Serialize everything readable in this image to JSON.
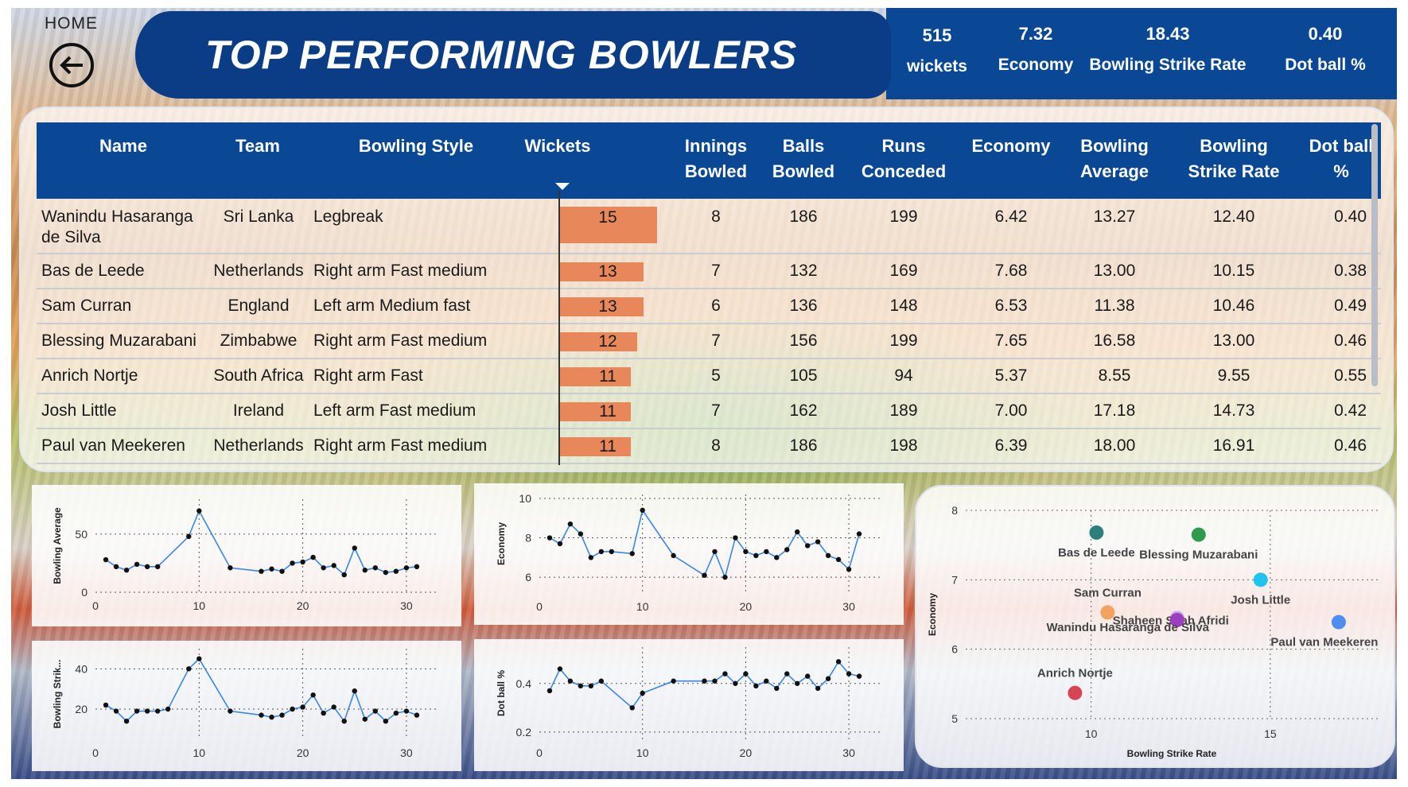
{
  "header": {
    "home_label": "HOME",
    "title": "TOP PERFORMING BOWLERS"
  },
  "kpis": [
    {
      "value": "515",
      "label": "wickets"
    },
    {
      "value": "7.32",
      "label": "Economy"
    },
    {
      "value": "18.43",
      "label": "Bowling Strike Rate"
    },
    {
      "value": "0.40",
      "label": "Dot ball %"
    }
  ],
  "table": {
    "columns": [
      "Name",
      "Team",
      "Bowling Style",
      "Wickets",
      "Innings Bowled",
      "Balls Bowled",
      "Runs Conceded",
      "Economy",
      "Bowling Average",
      "Bowling Strike Rate",
      "Dot ball %"
    ],
    "wickets_max": 15,
    "rows": [
      {
        "name": "Wanindu Hasaranga de Silva",
        "team": "Sri Lanka",
        "style": "Legbreak",
        "wickets": 15,
        "innings": "8",
        "balls": "186",
        "runs": "199",
        "economy": "6.42",
        "average": "13.27",
        "strike_rate": "12.40",
        "dot": "0.40"
      },
      {
        "name": "Bas de Leede",
        "team": "Netherlands",
        "style": "Right arm Fast medium",
        "wickets": 13,
        "innings": "7",
        "balls": "132",
        "runs": "169",
        "economy": "7.68",
        "average": "13.00",
        "strike_rate": "10.15",
        "dot": "0.38"
      },
      {
        "name": "Sam Curran",
        "team": "England",
        "style": "Left arm Medium fast",
        "wickets": 13,
        "innings": "6",
        "balls": "136",
        "runs": "148",
        "economy": "6.53",
        "average": "11.38",
        "strike_rate": "10.46",
        "dot": "0.49"
      },
      {
        "name": "Blessing Muzarabani",
        "team": "Zimbabwe",
        "style": "Right arm Fast medium",
        "wickets": 12,
        "innings": "7",
        "balls": "156",
        "runs": "199",
        "economy": "7.65",
        "average": "16.58",
        "strike_rate": "13.00",
        "dot": "0.46"
      },
      {
        "name": "Anrich Nortje",
        "team": "South Africa",
        "style": "Right arm Fast",
        "wickets": 11,
        "innings": "5",
        "balls": "105",
        "runs": "94",
        "economy": "5.37",
        "average": "8.55",
        "strike_rate": "9.55",
        "dot": "0.55"
      },
      {
        "name": "Josh Little",
        "team": "Ireland",
        "style": "Left arm Fast medium",
        "wickets": 11,
        "innings": "7",
        "balls": "162",
        "runs": "189",
        "economy": "7.00",
        "average": "17.18",
        "strike_rate": "14.73",
        "dot": "0.42"
      },
      {
        "name": "Paul van Meekeren",
        "team": "Netherlands",
        "style": "Right arm Fast medium",
        "wickets": 11,
        "innings": "8",
        "balls": "186",
        "runs": "198",
        "economy": "6.39",
        "average": "18.00",
        "strike_rate": "16.91",
        "dot": "0.46"
      }
    ]
  },
  "chart_data": [
    {
      "type": "line",
      "id": "avg",
      "ylabel": "Bowling Average",
      "xlim": [
        0,
        33
      ],
      "ylim": [
        0,
        80
      ],
      "xticks": [
        "0",
        "10",
        "20",
        "30"
      ],
      "yticks": [
        "0",
        "50"
      ],
      "x": [
        1,
        2,
        3,
        4,
        5,
        6,
        9,
        10,
        13,
        16,
        17,
        18,
        19,
        20,
        21,
        22,
        23,
        24,
        25,
        26,
        27,
        28,
        29,
        30,
        31
      ],
      "y": [
        28,
        22,
        19,
        24,
        22,
        22,
        48,
        70,
        21,
        18,
        20,
        18,
        25,
        26,
        30,
        21,
        23,
        15,
        38,
        19,
        21,
        17,
        18,
        21,
        22
      ]
    },
    {
      "type": "line",
      "id": "eco",
      "ylabel": "Economy",
      "xlim": [
        0,
        33
      ],
      "ylim": [
        5.2,
        10.2
      ],
      "xticks": [
        "0",
        "10",
        "20",
        "30"
      ],
      "yticks": [
        "6",
        "8",
        "10"
      ],
      "x": [
        1,
        2,
        3,
        4,
        5,
        6,
        7,
        9,
        10,
        13,
        16,
        17,
        18,
        19,
        20,
        21,
        22,
        23,
        24,
        25,
        26,
        27,
        28,
        29,
        30,
        31
      ],
      "y": [
        8.0,
        7.7,
        8.7,
        8.2,
        7.0,
        7.3,
        7.3,
        7.2,
        9.4,
        7.1,
        6.1,
        7.3,
        6.0,
        8.0,
        7.3,
        7.1,
        7.3,
        7.0,
        7.4,
        8.3,
        7.6,
        7.8,
        7.1,
        6.9,
        6.4,
        8.2
      ]
    },
    {
      "type": "line",
      "id": "sr",
      "ylabel": "Bowling Strik...",
      "xlim": [
        0,
        33
      ],
      "ylim": [
        5,
        50
      ],
      "xticks": [
        "0",
        "10",
        "20",
        "30"
      ],
      "yticks": [
        "20",
        "40"
      ],
      "x": [
        1,
        2,
        3,
        4,
        5,
        6,
        7,
        9,
        10,
        13,
        16,
        17,
        18,
        19,
        20,
        21,
        22,
        23,
        24,
        25,
        26,
        27,
        28,
        29,
        30,
        31
      ],
      "y": [
        22,
        19,
        14,
        19,
        19,
        19,
        20,
        40,
        45,
        19,
        17,
        16,
        17,
        20,
        21,
        27,
        18,
        21,
        14,
        29,
        15,
        19,
        14,
        18,
        19,
        17
      ]
    },
    {
      "type": "line",
      "id": "dot",
      "ylabel": "Dot ball %",
      "xlim": [
        0,
        33
      ],
      "ylim": [
        0.17,
        0.55
      ],
      "xticks": [
        "0",
        "10",
        "20",
        "30"
      ],
      "yticks": [
        "0.2",
        "0.4"
      ],
      "x": [
        1,
        2,
        3,
        4,
        5,
        6,
        9,
        10,
        13,
        16,
        17,
        18,
        19,
        20,
        21,
        22,
        23,
        24,
        25,
        26,
        27,
        28,
        29,
        30,
        31
      ],
      "y": [
        0.37,
        0.46,
        0.41,
        0.39,
        0.39,
        0.41,
        0.3,
        0.36,
        0.41,
        0.41,
        0.41,
        0.44,
        0.4,
        0.44,
        0.39,
        0.41,
        0.38,
        0.44,
        0.4,
        0.43,
        0.38,
        0.42,
        0.49,
        0.44,
        0.43
      ]
    },
    {
      "type": "scatter",
      "id": "scatter",
      "xlabel": "Bowling Strike Rate",
      "ylabel": "Economy",
      "xlim": [
        6.5,
        18
      ],
      "ylim": [
        5,
        8
      ],
      "xticks": [
        "10",
        "15"
      ],
      "yticks": [
        "5",
        "6",
        "7",
        "8"
      ],
      "points": [
        {
          "name": "Bas de Leede",
          "x": 10.15,
          "y": 7.68,
          "color": "#2d7f7c"
        },
        {
          "name": "Blessing Muzarabani",
          "x": 13.0,
          "y": 7.65,
          "color": "#2e9a4e"
        },
        {
          "name": "Josh Little",
          "x": 14.73,
          "y": 7.0,
          "color": "#22c3ef"
        },
        {
          "name": "Sam Curran",
          "x": 10.46,
          "y": 6.53,
          "color": "#f4a261"
        },
        {
          "name": "Shaheen Shah Afridi",
          "x": 12.4,
          "y": 6.45,
          "color": "#c6a7f5"
        },
        {
          "name": "Wanindu Hasaranga de Silva",
          "x": 12.4,
          "y": 6.42,
          "color": "#9b3fbf"
        },
        {
          "name": "Paul van Meekeren",
          "x": 16.91,
          "y": 6.39,
          "color": "#4f8ef0"
        },
        {
          "name": "Anrich Nortje",
          "x": 9.55,
          "y": 5.37,
          "color": "#d64554"
        }
      ]
    }
  ]
}
